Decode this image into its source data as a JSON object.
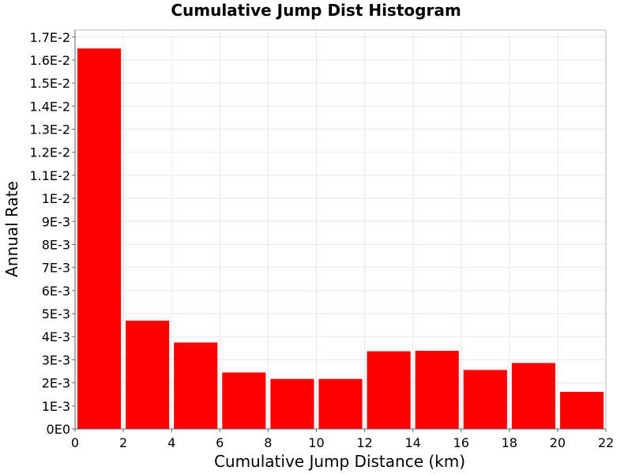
{
  "chart_data": {
    "type": "bar",
    "title": "Cumulative Jump Dist Histogram",
    "xlabel": "Cumulative Jump Distance (km)",
    "ylabel": "Annual Rate",
    "xlim": [
      0,
      22
    ],
    "ylim": [
      0,
      0.0173
    ],
    "x_ticks": [
      0,
      2,
      4,
      6,
      8,
      10,
      12,
      14,
      16,
      18,
      20,
      22
    ],
    "y_ticks": [
      0,
      0.001,
      0.002,
      0.003,
      0.004,
      0.005,
      0.006,
      0.007,
      0.008,
      0.009,
      0.01,
      0.011,
      0.012,
      0.013,
      0.014,
      0.015,
      0.016,
      0.017
    ],
    "y_tick_labels": [
      "0E0",
      "1E-3",
      "2E-3",
      "3E-3",
      "4E-3",
      "5E-3",
      "6E-3",
      "7E-3",
      "8E-3",
      "9E-3",
      "1E-2",
      "1.1E-2",
      "1.2E-2",
      "1.3E-2",
      "1.4E-2",
      "1.5E-2",
      "1.6E-2",
      "1.7E-2"
    ],
    "bin_width": 2,
    "bins": [
      {
        "x_center": 1,
        "value": 0.0165
      },
      {
        "x_center": 3,
        "value": 0.0047
      },
      {
        "x_center": 5,
        "value": 0.00375
      },
      {
        "x_center": 7,
        "value": 0.00245
      },
      {
        "x_center": 9,
        "value": 0.00217
      },
      {
        "x_center": 11,
        "value": 0.00217
      },
      {
        "x_center": 13,
        "value": 0.00337
      },
      {
        "x_center": 15,
        "value": 0.00339
      },
      {
        "x_center": 17,
        "value": 0.00256
      },
      {
        "x_center": 19,
        "value": 0.00286
      },
      {
        "x_center": 21,
        "value": 0.00161
      }
    ],
    "grid": true,
    "legend": "none",
    "colors": {
      "bar": "#ff0000",
      "grid": "#e8e8e8",
      "frame": "#bbbbbb"
    }
  }
}
